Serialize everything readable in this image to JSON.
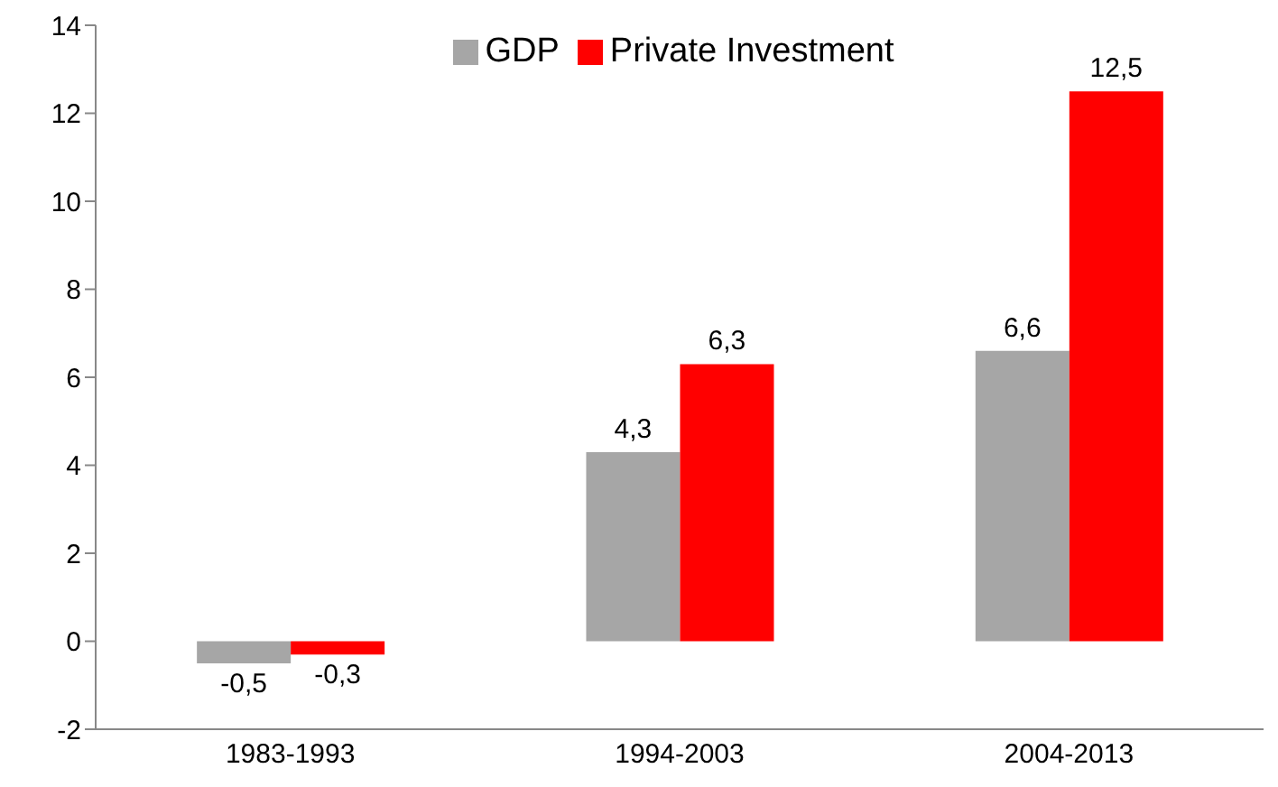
{
  "chart_data": {
    "type": "bar",
    "categories": [
      "1983-1993",
      "1994-2003",
      "2004-2013"
    ],
    "series": [
      {
        "name": "GDP",
        "color": "#a6a6a6",
        "values": [
          -0.5,
          4.3,
          6.6
        ],
        "value_labels": [
          "-0,5",
          "4,3",
          "6,6"
        ]
      },
      {
        "name": "Private Investment",
        "color": "#ff0000",
        "values": [
          -0.3,
          6.3,
          12.5
        ],
        "value_labels": [
          "-0,3",
          "6,3",
          "12,5"
        ]
      }
    ],
    "ylim": [
      -2,
      14
    ],
    "yticks": [
      -2,
      0,
      2,
      4,
      6,
      8,
      10,
      12,
      14
    ],
    "legend": "top"
  }
}
